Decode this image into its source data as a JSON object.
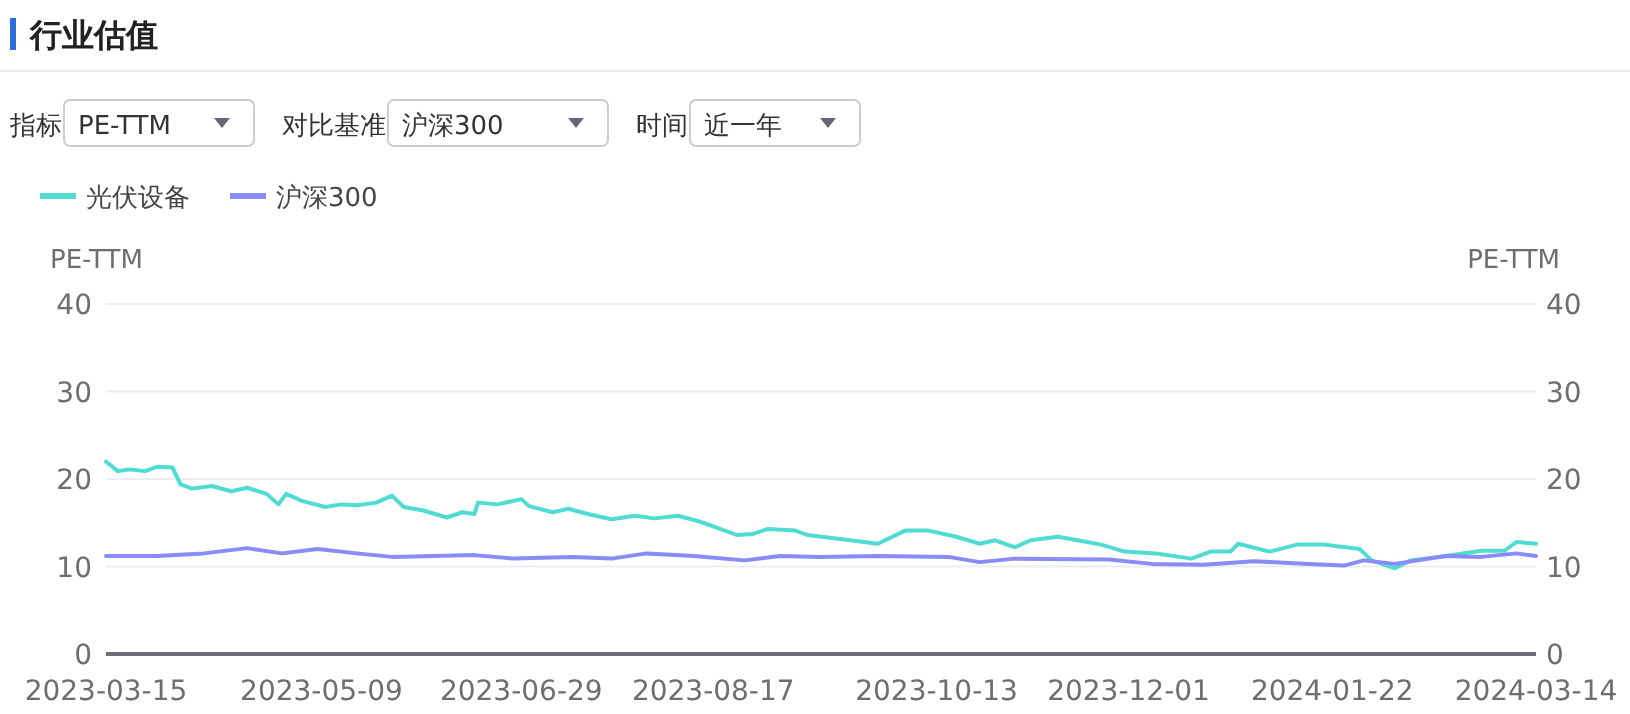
{
  "chart_data": {
    "type": "line",
    "title": "行业估值",
    "annotations": [
      "指标",
      "PE-TTM",
      "对比基准",
      "沪深300",
      "时间",
      "近一年"
    ],
    "ylabel": "PE-TTM",
    "y2label": "PE-TTM",
    "xlim": [
      "2023-03-15",
      "2024-03-14"
    ],
    "xticks": [
      "2023-03-15",
      "2023-05-09",
      "2023-06-29",
      "2023-08-17",
      "2023-10-13",
      "2023-12-01",
      "2024-01-22",
      "2024-03-14"
    ],
    "ylim": [
      0,
      40
    ],
    "yticks": [
      0,
      10,
      20,
      30,
      40
    ],
    "y2lim": [
      0,
      40
    ],
    "y2ticks": [
      0,
      10,
      20,
      30,
      40
    ],
    "grid": "y",
    "legend": "top left",
    "line_style": "solid",
    "series": [
      {
        "name": "光伏设备",
        "color": "#50dcd2",
        "x": [
          "2023-03-15",
          "2023-03-18",
          "2023-03-21",
          "2023-03-25",
          "2023-03-28",
          "2023-04-01",
          "2023-04-03",
          "2023-04-06",
          "2023-04-11",
          "2023-04-16",
          "2023-04-20",
          "2023-04-25",
          "2023-04-28",
          "2023-04-30",
          "2023-05-04",
          "2023-05-10",
          "2023-05-14",
          "2023-05-18",
          "2023-05-23",
          "2023-05-27",
          "2023-05-30",
          "2023-06-04",
          "2023-06-10",
          "2023-06-14",
          "2023-06-17",
          "2023-06-18",
          "2023-06-23",
          "2023-06-29",
          "2023-07-01",
          "2023-07-07",
          "2023-07-11",
          "2023-07-16",
          "2023-07-22",
          "2023-07-28",
          "2023-08-02",
          "2023-08-08",
          "2023-08-13",
          "2023-08-17",
          "2023-08-23",
          "2023-08-27",
          "2023-08-31",
          "2023-09-07",
          "2023-09-10",
          "2023-09-21",
          "2023-09-28",
          "2023-10-05",
          "2023-10-11",
          "2023-10-18",
          "2023-10-24",
          "2023-10-28",
          "2023-11-02",
          "2023-11-06",
          "2023-11-13",
          "2023-11-18",
          "2023-11-24",
          "2023-11-30",
          "2023-12-08",
          "2023-12-17",
          "2023-12-22",
          "2023-12-27",
          "2023-12-29",
          "2024-01-06",
          "2024-01-13",
          "2024-01-20",
          "2024-01-29",
          "2024-02-01",
          "2024-02-07",
          "2024-02-11",
          "2024-02-20",
          "2024-02-29",
          "2024-03-06",
          "2024-03-09",
          "2024-03-14"
        ],
        "values": [
          22.0,
          20.9,
          21.1,
          20.9,
          21.4,
          21.3,
          19.4,
          18.9,
          19.2,
          18.6,
          19.0,
          18.3,
          17.1,
          18.3,
          17.5,
          16.8,
          17.1,
          17.0,
          17.3,
          18.1,
          16.8,
          16.4,
          15.6,
          16.2,
          16.0,
          17.3,
          17.1,
          17.7,
          16.9,
          16.2,
          16.6,
          16.0,
          15.4,
          15.8,
          15.5,
          15.8,
          15.2,
          14.6,
          13.6,
          13.7,
          14.3,
          14.1,
          13.6,
          13.0,
          12.6,
          14.1,
          14.1,
          13.4,
          12.6,
          13.0,
          12.2,
          13.0,
          13.4,
          13.0,
          12.5,
          11.7,
          11.5,
          10.9,
          11.7,
          11.7,
          12.6,
          11.7,
          12.5,
          12.5,
          12.0,
          10.7,
          9.8,
          10.7,
          11.2,
          11.8,
          11.8,
          12.8,
          12.6
        ]
      },
      {
        "name": "沪深300",
        "color": "#8a8cf5",
        "x": [
          "2023-03-15",
          "2023-03-28",
          "2023-04-09",
          "2023-04-20",
          "2023-04-29",
          "2023-05-08",
          "2023-05-18",
          "2023-05-27",
          "2023-06-17",
          "2023-06-27",
          "2023-07-12",
          "2023-07-22",
          "2023-07-31",
          "2023-08-12",
          "2023-08-25",
          "2023-09-03",
          "2023-09-13",
          "2023-09-28",
          "2023-10-16",
          "2023-10-24",
          "2023-11-02",
          "2023-11-26",
          "2023-12-07",
          "2023-12-20",
          "2024-01-02",
          "2024-01-16",
          "2024-01-25",
          "2024-01-30",
          "2024-02-07",
          "2024-02-20",
          "2024-02-29",
          "2024-03-09",
          "2024-03-14"
        ],
        "values": [
          11.2,
          11.2,
          11.5,
          12.1,
          11.5,
          12.0,
          11.5,
          11.1,
          11.3,
          10.9,
          11.1,
          10.9,
          11.5,
          11.2,
          10.7,
          11.2,
          11.1,
          11.2,
          11.1,
          10.5,
          10.9,
          10.8,
          10.3,
          10.2,
          10.6,
          10.3,
          10.1,
          10.7,
          10.3,
          11.2,
          11.1,
          11.5,
          11.2
        ]
      }
    ]
  }
}
